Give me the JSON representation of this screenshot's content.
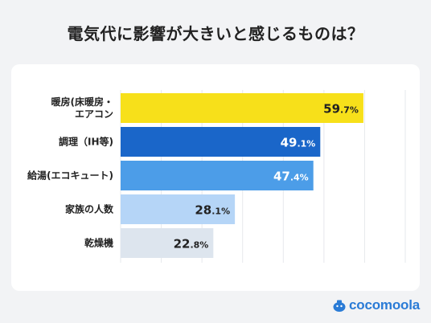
{
  "title": "電気代に影響が大きいと感じるものは？",
  "brand": "cocomoola",
  "chart_data": {
    "type": "bar",
    "orientation": "horizontal",
    "categories": [
      [
        "暖房(床暖房・",
        "エアコン"
      ],
      [
        "調理（IH等)"
      ],
      [
        "給湯(エコキュート)"
      ],
      [
        "家族の人数"
      ],
      [
        "乾燥機"
      ]
    ],
    "values": [
      59.7,
      49.1,
      47.4,
      28.1,
      22.8
    ],
    "value_labels": [
      {
        "int": "59",
        "dec": ".7%"
      },
      {
        "int": "49",
        "dec": ".1%"
      },
      {
        "int": "47",
        "dec": ".4%"
      },
      {
        "int": "28",
        "dec": ".1%"
      },
      {
        "int": "22",
        "dec": ".8%"
      }
    ],
    "colors": [
      "#f7e01a",
      "#1a66c9",
      "#4c9de8",
      "#b5d5f7",
      "#dde5ee"
    ],
    "label_colors": [
      "#222222",
      "#ffffff",
      "#ffffff",
      "#222222",
      "#222222"
    ],
    "xlim": [
      0,
      70
    ],
    "grid": true
  }
}
